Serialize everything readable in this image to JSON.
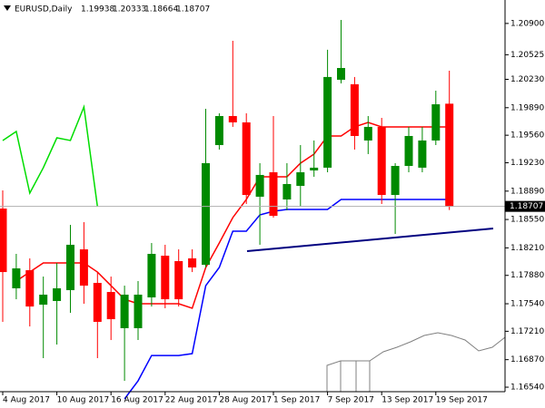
{
  "chart_data": {
    "type": "candlestick",
    "title": "EURUSD,Daily",
    "categories": [
      "4 Aug 2017",
      null,
      null,
      null,
      "10 Aug 2017",
      null,
      null,
      null,
      "16 Aug 2017",
      null,
      null,
      null,
      "22 Aug 2017",
      null,
      null,
      null,
      "28 Aug 2017",
      null,
      null,
      null,
      "1 Sep 2017",
      null,
      null,
      null,
      "7 Sep 2017",
      null,
      null,
      null,
      "13 Sep 2017",
      null,
      null,
      null,
      "19 Sep 2017",
      null
    ],
    "open": [
      1.18681,
      1.17725,
      1.17942,
      1.17529,
      1.17573,
      1.17703,
      1.18192,
      1.1779,
      1.17681,
      1.17247,
      1.17247,
      1.17616,
      1.18116,
      1.18051,
      1.18084,
      1.18007,
      1.19442,
      1.1979,
      1.19714,
      1.18823,
      1.19116,
      1.1879,
      1.18953,
      1.19138,
      1.19171,
      1.20225,
      1.20171,
      1.19497,
      1.1966,
      1.18844,
      1.19192,
      1.19171,
      1.19497,
      1.19938
    ],
    "high": [
      1.18899,
      1.18138,
      1.18084,
      1.17866,
      1.18029,
      1.18486,
      1.18518,
      1.1792,
      1.17866,
      1.17757,
      1.17812,
      1.18268,
      1.18247,
      1.18192,
      1.18192,
      1.19877,
      1.19823,
      1.20692,
      1.19823,
      1.19225,
      1.1979,
      1.19225,
      1.19442,
      1.19497,
      1.20584,
      1.20942,
      1.20258,
      1.1979,
      1.19768,
      1.19225,
      1.1966,
      1.1966,
      1.20094,
      1.20333
    ],
    "low": [
      1.17323,
      1.17594,
      1.17268,
      1.16888,
      1.17051,
      1.17431,
      1.1754,
      1.16888,
      1.17105,
      1.16616,
      1.17105,
      1.17507,
      1.17486,
      1.17507,
      1.1792,
      1.17975,
      1.19388,
      1.1966,
      1.18736,
      1.18247,
      1.18573,
      1.1866,
      1.18703,
      1.19062,
      1.19116,
      1.20181,
      1.19388,
      1.19334,
      1.18736,
      1.18377,
      1.19116,
      1.19116,
      1.19442,
      1.18664
    ],
    "close": [
      1.1792,
      1.17964,
      1.17507,
      1.17649,
      1.17725,
      1.18247,
      1.17757,
      1.17323,
      1.17355,
      1.17649,
      1.17649,
      1.18138,
      1.17594,
      1.17594,
      1.17975,
      1.19225,
      1.1979,
      1.19714,
      1.18844,
      1.19084,
      1.18594,
      1.18975,
      1.19116,
      1.19171,
      1.20258,
      1.20366,
      1.19551,
      1.1966,
      1.18844,
      1.19192,
      1.19551,
      1.19497,
      1.19931,
      1.18707
    ],
    "up_color": "#008a00",
    "down_color": "#ff0000",
    "series": [
      {
        "color": "#ff0000",
        "values": [
          null,
          1.17812,
          1.1792,
          1.18029,
          1.18029,
          1.18029,
          1.18029,
          1.1792,
          1.17757,
          1.17594,
          1.1754,
          1.1754,
          1.1754,
          1.1754,
          1.17486,
          1.17975,
          1.18268,
          1.18573,
          1.1879,
          1.19062,
          1.19062,
          1.19062,
          1.19225,
          1.19334,
          1.19551,
          1.19551,
          1.1966,
          1.19714,
          1.1966,
          1.1966,
          1.1966,
          1.1966,
          1.1966,
          1.1966
        ]
      },
      {
        "color": "#0000ff",
        "values": [
          null,
          null,
          null,
          null,
          null,
          null,
          null,
          null,
          null,
          1.16399,
          1.16616,
          1.1692,
          1.1692,
          1.1692,
          1.16942,
          1.17757,
          1.17975,
          1.1841,
          1.1841,
          1.18605,
          1.18649,
          1.18671,
          1.18671,
          1.18671,
          1.18671,
          1.1879,
          1.1879,
          1.1879,
          1.1879,
          1.1879,
          1.1879,
          1.1879,
          1.1879,
          1.1879
        ]
      },
      {
        "color": "#00dd00",
        "values": [
          1.19497,
          1.19605,
          1.18866,
          1.19171,
          1.19529,
          1.19497,
          1.19899,
          1.18703,
          null,
          null,
          null,
          null,
          null,
          null,
          null,
          null,
          null,
          null,
          null,
          null,
          null,
          null,
          null,
          null,
          null,
          null,
          null,
          null,
          null,
          null,
          null,
          null,
          null,
          null
        ]
      }
    ],
    "ylim": [
      1.16486,
      1.21181
    ],
    "yticks": [
      {
        "value": 1.209,
        "label": "1.20900"
      },
      {
        "value": 1.20525,
        "label": "1.20525"
      },
      {
        "value": 1.2023,
        "label": "1.20230"
      },
      {
        "value": 1.1989,
        "label": "1.19890"
      },
      {
        "value": 1.1956,
        "label": "1.19560"
      },
      {
        "value": 1.1923,
        "label": "1.19230"
      },
      {
        "value": 1.1889,
        "label": "1.18890"
      },
      {
        "value": 1.1855,
        "label": "1.18550"
      },
      {
        "value": 1.1821,
        "label": "1.18210"
      },
      {
        "value": 1.1788,
        "label": "1.17880"
      },
      {
        "value": 1.1754,
        "label": "1.17540"
      },
      {
        "value": 1.1721,
        "label": "1.17210"
      },
      {
        "value": 1.1687,
        "label": "1.16870"
      },
      {
        "value": 1.1654,
        "label": "1.16540"
      }
    ],
    "grid": false
  }
}
